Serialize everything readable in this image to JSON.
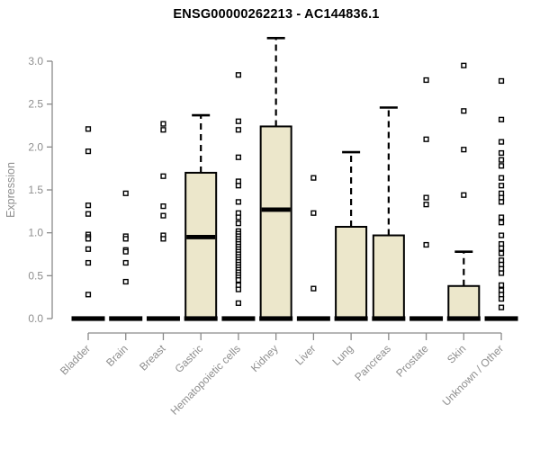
{
  "chart_data": {
    "type": "boxplot",
    "title": "ENSG00000262213 - AC144836.1",
    "ylabel": "Expression",
    "ylim": [
      0,
      3.3
    ],
    "yticks": [
      0.0,
      0.5,
      1.0,
      1.5,
      2.0,
      2.5,
      3.0
    ],
    "grid": false,
    "legend": "none",
    "categories": [
      "Bladder",
      "Brain",
      "Breast",
      "Gastric",
      "Hematopoietic cells",
      "Kidney",
      "Liver",
      "Lung",
      "Pancreas",
      "Prostate",
      "Skin",
      "Unknown / Other"
    ],
    "series": [
      {
        "name": "Bladder",
        "box": null,
        "zero_bar": true,
        "outliers": [
          2.21,
          1.95,
          1.32,
          1.22,
          0.98,
          0.95,
          0.93,
          0.81,
          0.65,
          0.28
        ]
      },
      {
        "name": "Brain",
        "box": null,
        "zero_bar": true,
        "outliers": [
          1.46,
          0.96,
          0.93,
          0.8,
          0.78,
          0.65,
          0.43
        ]
      },
      {
        "name": "Breast",
        "box": null,
        "zero_bar": true,
        "outliers": [
          2.27,
          2.2,
          1.66,
          1.31,
          1.2,
          0.97,
          0.93
        ]
      },
      {
        "name": "Gastric",
        "box": {
          "q1": 0,
          "median": 0.95,
          "q3": 1.7,
          "whisker_low": 0,
          "whisker_high": 2.37
        },
        "zero_bar": true,
        "outliers": []
      },
      {
        "name": "Hematopoietic cells",
        "box": null,
        "zero_bar": true,
        "outliers": [
          2.84,
          2.3,
          2.2,
          1.88,
          1.6,
          1.55,
          1.36,
          1.23,
          1.18,
          1.11,
          1.02,
          0.99,
          0.96,
          0.93,
          0.9,
          0.87,
          0.84,
          0.81,
          0.78,
          0.75,
          0.72,
          0.69,
          0.66,
          0.63,
          0.6,
          0.57,
          0.54,
          0.51,
          0.48,
          0.45,
          0.39,
          0.34,
          0.18
        ]
      },
      {
        "name": "Kidney",
        "box": {
          "q1": 0,
          "median": 1.27,
          "q3": 2.24,
          "whisker_low": 0,
          "whisker_high": 3.27
        },
        "zero_bar": true,
        "outliers": []
      },
      {
        "name": "Liver",
        "box": null,
        "zero_bar": true,
        "outliers": [
          1.64,
          1.23,
          0.35
        ]
      },
      {
        "name": "Lung",
        "box": {
          "q1": 0,
          "median": 0,
          "q3": 1.07,
          "whisker_low": 0,
          "whisker_high": 1.94
        },
        "zero_bar": true,
        "outliers": []
      },
      {
        "name": "Pancreas",
        "box": {
          "q1": 0,
          "median": 0,
          "q3": 0.97,
          "whisker_low": 0,
          "whisker_high": 2.46
        },
        "zero_bar": true,
        "outliers": []
      },
      {
        "name": "Prostate",
        "box": null,
        "zero_bar": true,
        "outliers": [
          2.78,
          2.09,
          1.41,
          1.33,
          0.86
        ]
      },
      {
        "name": "Skin",
        "box": {
          "q1": 0,
          "median": 0,
          "q3": 0.38,
          "whisker_low": 0,
          "whisker_high": 0.78
        },
        "zero_bar": true,
        "outliers": [
          2.95,
          2.42,
          1.97,
          1.44
        ]
      },
      {
        "name": "Unknown / Other",
        "box": null,
        "zero_bar": true,
        "outliers": [
          2.77,
          2.32,
          2.06,
          1.93,
          1.85,
          1.78,
          1.64,
          1.55,
          1.46,
          1.41,
          1.36,
          1.18,
          1.12,
          0.97,
          0.87,
          0.82,
          0.76,
          0.68,
          0.63,
          0.58,
          0.53,
          0.39,
          0.33,
          0.28,
          0.23,
          0.13
        ]
      }
    ],
    "colors": {
      "box_fill": "#ece7cb",
      "box_stroke": "#000000",
      "median": "#000000",
      "whisker": "#000000",
      "outlier_stroke": "#000000",
      "outlier_fill": "#ffffff",
      "axis": "#8a8a8a",
      "tick_text": "#8e8e8e",
      "title_text": "#000000",
      "background": "#ffffff"
    }
  }
}
